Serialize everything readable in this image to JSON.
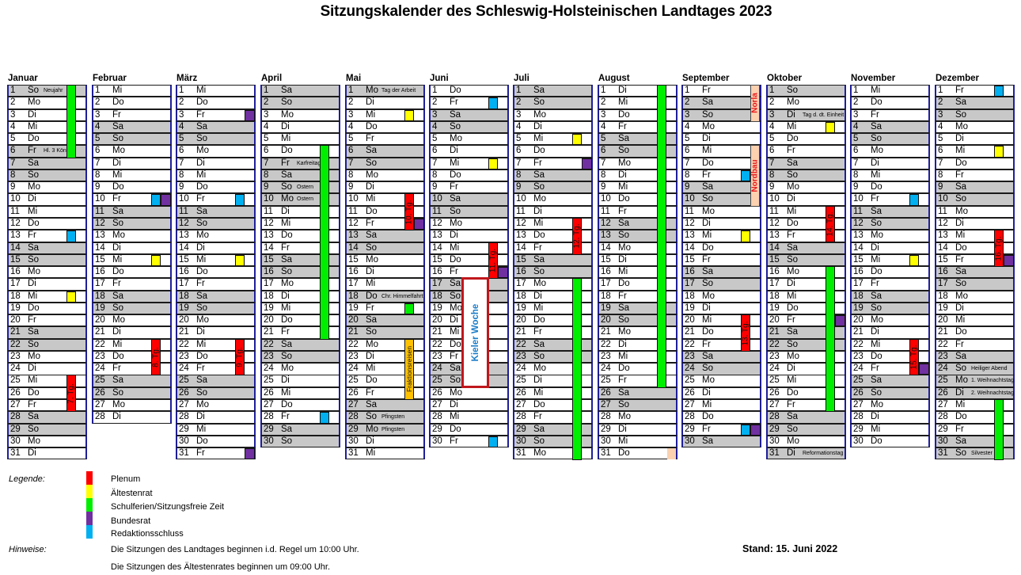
{
  "title": "Sitzungskalender des Schleswig-Holsteinischen Landtages 2023",
  "colors": {
    "plenum": "#ff0000",
    "aeltestenrat": "#ffff00",
    "ferien": "#00ee00",
    "bundesrat": "#7030a0",
    "redaktionsschluss": "#00b0f0",
    "fraktionsreisen": "#ffc000",
    "weekend": "#c8c8c8",
    "messe": "#fbd1b0"
  },
  "months": [
    {
      "name": "Januar",
      "days": 31,
      "first_weekday": 6,
      "holidays": {
        "1": "Neujahr",
        "6": "Hl. 3 Könige"
      },
      "marks": [
        {
          "day": 13,
          "type": "redaktionsschluss"
        },
        {
          "day": 18,
          "type": "aeltestenrat"
        }
      ],
      "bars": [
        {
          "from": 1,
          "to": 6,
          "type": "ferien"
        },
        {
          "from": 25,
          "to": 27,
          "type": "plenum",
          "label": "7. Tg."
        }
      ]
    },
    {
      "name": "Februar",
      "days": 28,
      "first_weekday": 2,
      "holidays": {},
      "marks": [
        {
          "day": 10,
          "type": "redaktionsschluss"
        },
        {
          "day": 10,
          "type": "bundesrat",
          "slot": 2
        },
        {
          "day": 15,
          "type": "aeltestenrat"
        }
      ],
      "bars": [
        {
          "from": 22,
          "to": 24,
          "type": "plenum",
          "label": "8. Tg."
        }
      ]
    },
    {
      "name": "März",
      "days": 31,
      "first_weekday": 2,
      "holidays": {},
      "marks": [
        {
          "day": 3,
          "type": "bundesrat",
          "slot": 2
        },
        {
          "day": 10,
          "type": "redaktionsschluss"
        },
        {
          "day": 15,
          "type": "aeltestenrat"
        },
        {
          "day": 31,
          "type": "bundesrat",
          "slot": 2
        }
      ],
      "bars": [
        {
          "from": 22,
          "to": 24,
          "type": "plenum",
          "label": "9. Tg."
        }
      ]
    },
    {
      "name": "April",
      "days": 30,
      "first_weekday": 5,
      "holidays": {
        "7": "Karfreitag",
        "9": "Ostern",
        "10": "Ostern"
      },
      "marks": [
        {
          "day": 28,
          "type": "redaktionsschluss"
        }
      ],
      "bars": [
        {
          "from": 6,
          "to": 21,
          "type": "ferien"
        }
      ]
    },
    {
      "name": "Mai",
      "days": 31,
      "first_weekday": 0,
      "holidays": {
        "1": "Tag der Arbeit",
        "18": "Chr. Himmelfahrt",
        "28": "Pfingsten",
        "29": "Pfingsten"
      },
      "marks": [
        {
          "day": 3,
          "type": "aeltestenrat"
        },
        {
          "day": 12,
          "type": "bundesrat",
          "slot": 2
        },
        {
          "day": 19,
          "type": "ferien"
        }
      ],
      "bars": [
        {
          "from": 10,
          "to": 12,
          "type": "plenum",
          "label": "10. Tg."
        },
        {
          "from": 22,
          "to": 26,
          "type": "fraktionsreisen",
          "label": "Fraktionsreisen"
        }
      ]
    },
    {
      "name": "Juni",
      "days": 30,
      "first_weekday": 3,
      "holidays": {},
      "marks": [
        {
          "day": 2,
          "type": "redaktionsschluss"
        },
        {
          "day": 7,
          "type": "aeltestenrat"
        },
        {
          "day": 16,
          "type": "bundesrat",
          "slot": 2
        },
        {
          "day": 30,
          "type": "redaktionsschluss"
        }
      ],
      "bars": [
        {
          "from": 14,
          "to": 16,
          "type": "plenum",
          "label": "11. Tg."
        }
      ],
      "event": {
        "from": 17,
        "to": 25,
        "label": "Kieler Woche"
      }
    },
    {
      "name": "Juli",
      "days": 31,
      "first_weekday": 5,
      "holidays": {},
      "marks": [
        {
          "day": 5,
          "type": "aeltestenrat"
        },
        {
          "day": 7,
          "type": "bundesrat",
          "slot": 2
        }
      ],
      "bars": [
        {
          "from": 12,
          "to": 14,
          "type": "plenum",
          "label": "12. Tg."
        },
        {
          "from": 17,
          "to": 31,
          "type": "ferien"
        }
      ]
    },
    {
      "name": "August",
      "days": 31,
      "first_weekday": 1,
      "holidays": {},
      "marks": [
        {
          "day": 31,
          "type": "messe",
          "slot": 2
        }
      ],
      "bars": [
        {
          "from": 1,
          "to": 25,
          "type": "ferien"
        }
      ]
    },
    {
      "name": "September",
      "days": 30,
      "first_weekday": 4,
      "holidays": {},
      "marks": [
        {
          "day": 8,
          "type": "redaktionsschluss"
        },
        {
          "day": 13,
          "type": "aeltestenrat"
        },
        {
          "day": 29,
          "type": "redaktionsschluss"
        },
        {
          "day": 29,
          "type": "bundesrat",
          "slot": 2
        }
      ],
      "bars": [
        {
          "from": 20,
          "to": 22,
          "type": "plenum",
          "label": "13. Tg."
        }
      ],
      "fairs": [
        {
          "from": 1,
          "to": 3,
          "label": "Norla"
        },
        {
          "from": 6,
          "to": 10,
          "label": "Nordbau"
        }
      ]
    },
    {
      "name": "Oktober",
      "days": 31,
      "first_weekday": 6,
      "holidays": {
        "3": "Tag d. dt. Einheit",
        "31": "Reformationstag"
      },
      "marks": [
        {
          "day": 4,
          "type": "aeltestenrat"
        },
        {
          "day": 20,
          "type": "bundesrat",
          "slot": 2
        }
      ],
      "bars": [
        {
          "from": 11,
          "to": 13,
          "type": "plenum",
          "label": "14. Tg."
        },
        {
          "from": 16,
          "to": 27,
          "type": "ferien"
        }
      ]
    },
    {
      "name": "November",
      "days": 30,
      "first_weekday": 2,
      "holidays": {},
      "marks": [
        {
          "day": 10,
          "type": "redaktionsschluss"
        },
        {
          "day": 15,
          "type": "aeltestenrat"
        },
        {
          "day": 24,
          "type": "bundesrat",
          "slot": 2
        }
      ],
      "bars": [
        {
          "from": 22,
          "to": 24,
          "type": "plenum",
          "label": "15. Tg."
        }
      ]
    },
    {
      "name": "Dezember",
      "days": 31,
      "first_weekday": 4,
      "holidays": {
        "24": "Heiliger Abend",
        "25": "1. Weihnachtstag",
        "26": "2. Weihnachtstag",
        "31": "Silvester"
      },
      "marks": [
        {
          "day": 1,
          "type": "redaktionsschluss"
        },
        {
          "day": 6,
          "type": "aeltestenrat"
        },
        {
          "day": 15,
          "type": "bundesrat",
          "slot": 2
        }
      ],
      "bars": [
        {
          "from": 13,
          "to": 15,
          "type": "plenum",
          "label": "16. Tg."
        },
        {
          "from": 27,
          "to": 31,
          "type": "ferien"
        }
      ]
    }
  ],
  "weekday_abbr": [
    "Mo",
    "Di",
    "Mi",
    "Do",
    "Fr",
    "Sa",
    "So"
  ],
  "legend": {
    "heading": "Legende:",
    "items": [
      {
        "label": "Plenum",
        "color": "#ff0000"
      },
      {
        "label": "Ältestenrat",
        "color": "#ffff00"
      },
      {
        "label": "Schulferien/Sitzungsfreie Zeit",
        "color": "#00ee00"
      },
      {
        "label": "Bundesrat",
        "color": "#7030a0"
      },
      {
        "label": "Redaktionsschluss",
        "color": "#00b0f0"
      }
    ]
  },
  "notes": {
    "heading": "Hinweise:",
    "lines": [
      "Die Sitzungen des Landtages beginnen i.d. Regel um 10:00 Uhr.",
      "Die Sitzungen des Ältestenrates beginnen um 09:00 Uhr."
    ]
  },
  "stand": "Stand:  15. Juni 2022"
}
